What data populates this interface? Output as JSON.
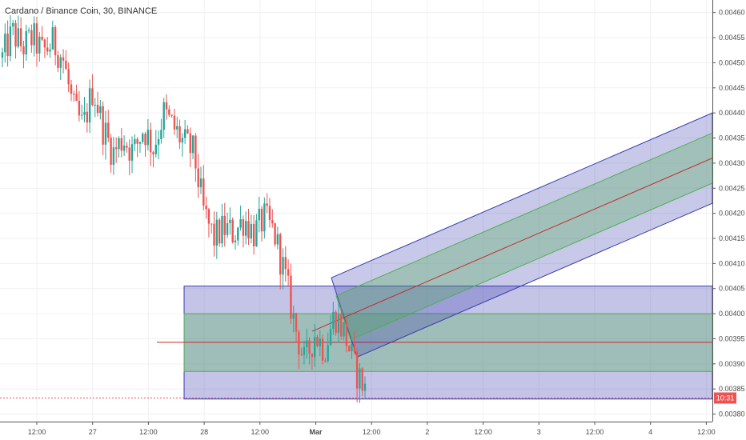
{
  "chart_data": {
    "type": "candlestick",
    "title": "Cardano / Binance Coin, 30, BINANCE",
    "y_ticks": [
      "0.00460",
      "0.00455",
      "0.00450",
      "0.00445",
      "0.00440",
      "0.00435",
      "0.00430",
      "0.00425",
      "0.00420",
      "0.00415",
      "0.00410",
      "0.00405",
      "0.00400",
      "0.00395",
      "0.00390",
      "0.00385",
      "0.00380"
    ],
    "y_range": [
      0.003785,
      0.004625
    ],
    "x_ticks": [
      {
        "label": "12:00",
        "bold": false
      },
      {
        "label": "27",
        "bold": false
      },
      {
        "label": "12:00",
        "bold": false
      },
      {
        "label": "28",
        "bold": false
      },
      {
        "label": "12:00",
        "bold": false
      },
      {
        "label": "Mar",
        "bold": true
      },
      {
        "label": "12:00",
        "bold": false
      },
      {
        "label": "2",
        "bold": false
      },
      {
        "label": "12:00",
        "bold": false
      },
      {
        "label": "3",
        "bold": false
      },
      {
        "label": "12:00",
        "bold": false
      },
      {
        "label": "4",
        "bold": false
      },
      {
        "label": "12:00",
        "bold": false
      }
    ],
    "current_price": 0.003832,
    "countdown": "10:31",
    "colors": {
      "up": "#26a69a",
      "down": "#ef5350",
      "band": "#3a3ab0",
      "green_band": "#4caf50",
      "mid": "#c62828"
    },
    "waypoints": [
      0.00451,
      0.00456,
      0.00453,
      0.00455,
      0.00452,
      0.00454,
      0.00451,
      0.00441,
      0.00437,
      0.00445,
      0.00437,
      0.00432,
      0.00435,
      0.00432,
      0.00437,
      0.00433,
      0.0044,
      0.00437,
      0.00434,
      0.00432,
      0.0042,
      0.00415,
      0.00417,
      0.00416,
      0.00419,
      0.00416,
      0.00419,
      0.00416,
      0.00408,
      0.00398,
      0.0039,
      0.00396,
      0.00393,
      0.004,
      0.00396,
      0.00389,
      0.00385
    ],
    "boxes": {
      "outer": {
        "price_top": 0.004055,
        "price_bottom": 0.00383
      },
      "green": {
        "price_top": 0.004,
        "price_bottom": 0.003885
      },
      "mid_price": 0.003943
    },
    "channel": {
      "mid_start": 0.003965,
      "mid_end": 0.00431,
      "inner_offset": 5e-05,
      "outer_offset": 9e-05
    }
  }
}
